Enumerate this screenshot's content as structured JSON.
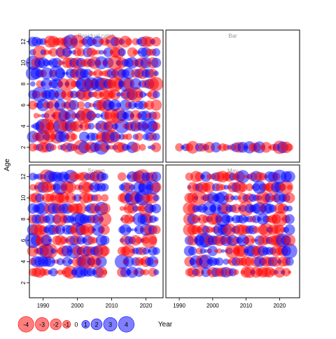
{
  "chart_data": {
    "type": "scatter",
    "subtype": "bubble-residual-panels",
    "ylabel": "Age",
    "xlabel": "Year",
    "colors": {
      "positive": "#0000ff",
      "negative": "#ff0000",
      "frame": "#000000",
      "panel_title": "#9a9a9a"
    },
    "bubble_alpha": 0.5,
    "ylim": [
      0.6,
      13.1
    ],
    "yticks": [
      2,
      4,
      6,
      8,
      10,
      12
    ],
    "panels": [
      {
        "id": "residual-catch",
        "title": "Residual catch",
        "xlim": [
          1986,
          2025
        ],
        "xticks": [],
        "years": [
          1987,
          2023
        ],
        "ages": [
          2,
          3,
          4,
          5,
          6,
          7,
          8,
          9,
          10,
          11,
          12
        ],
        "seed": 11
      },
      {
        "id": "bar",
        "title": "Bar",
        "xlim": [
          1986,
          2026
        ],
        "xticks": [],
        "years": [
          1990,
          2023
        ],
        "ages": [
          2
        ],
        "seed": 23
      },
      {
        "id": "spawn",
        "title": "Spawn",
        "xlim": [
          1986,
          2025
        ],
        "xticks": [
          1990,
          2000,
          2010,
          2020
        ],
        "years": [
          1987,
          2023
        ],
        "ages": [
          3,
          4,
          5,
          6,
          7,
          8,
          9,
          10,
          11,
          12
        ],
        "gap": [
          2009,
          2012
        ],
        "seed": 37
      },
      {
        "id": "may",
        "title": "May",
        "xlim": [
          1986,
          2026
        ],
        "xticks": [
          1990,
          2000,
          2010,
          2020
        ],
        "years": [
          1993,
          2023
        ],
        "ages": [
          3,
          4,
          5,
          6,
          7,
          8,
          9,
          10,
          11,
          12
        ],
        "seed": 53
      }
    ],
    "legend": {
      "values": [
        -4,
        -3,
        -2,
        -1,
        0,
        1,
        2,
        3,
        4
      ],
      "labels": [
        "-4",
        "-3",
        "-2",
        "-1",
        "0",
        "1",
        "2",
        "3",
        "4"
      ]
    }
  }
}
